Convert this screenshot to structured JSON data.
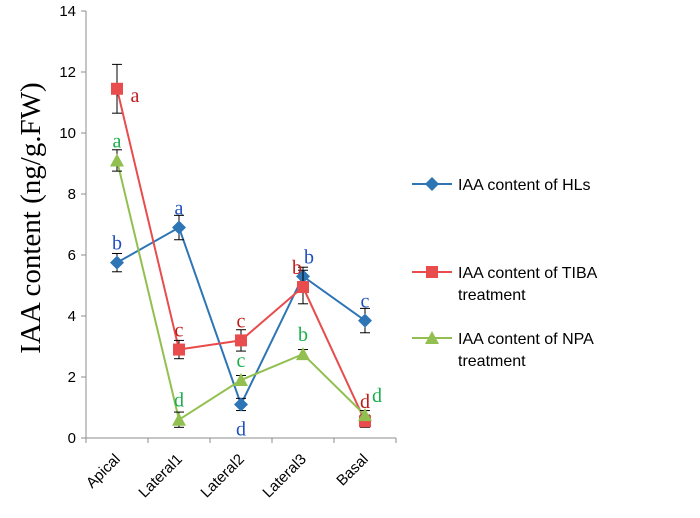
{
  "chart_data": {
    "type": "line",
    "categories": [
      "Apical",
      "Lateral1",
      "Lateral2",
      "Lateral3",
      "Basal"
    ],
    "ylabel": "IAA content (ng/g.FW)",
    "xlabel": "",
    "ylim": [
      0,
      14
    ],
    "yticks": [
      "0",
      "2",
      "4",
      "6",
      "8",
      "10",
      "12",
      "14"
    ],
    "grid": false,
    "legend_position": "right",
    "series": [
      {
        "name": "IAA content of HLs",
        "legend_lines": [
          "IAA content of HLs"
        ],
        "marker": "diamond",
        "color": "#2E75B6",
        "label_color": "#1F4FBF",
        "values": [
          5.75,
          6.9,
          1.1,
          5.3,
          3.85
        ],
        "errors": [
          0.3,
          0.4,
          0.2,
          0.3,
          0.4
        ],
        "labels": [
          "b",
          "a",
          "d",
          "b",
          "c"
        ]
      },
      {
        "name": "IAA content of TIBA treatment",
        "legend_lines": [
          "IAA content of TIBA",
          "treatment"
        ],
        "marker": "square",
        "color": "#E84C4C",
        "label_color": "#C01B1B",
        "values": [
          11.45,
          2.9,
          3.2,
          4.95,
          0.55
        ],
        "errors": [
          0.8,
          0.3,
          0.35,
          0.55,
          0.2
        ],
        "labels": [
          "a",
          "c",
          "c",
          "b",
          "d"
        ]
      },
      {
        "name": "IAA content of NPA treatment",
        "legend_lines": [
          "IAA content of NPA",
          "treatment"
        ],
        "marker": "triangle",
        "color": "#92C050",
        "label_color": "#18B04A",
        "values": [
          9.1,
          0.6,
          1.9,
          2.75,
          0.75
        ],
        "errors": [
          0.35,
          0.25,
          0.15,
          0.15,
          0.15
        ],
        "labels": [
          "a",
          "d",
          "c",
          "b",
          "d"
        ]
      }
    ]
  }
}
